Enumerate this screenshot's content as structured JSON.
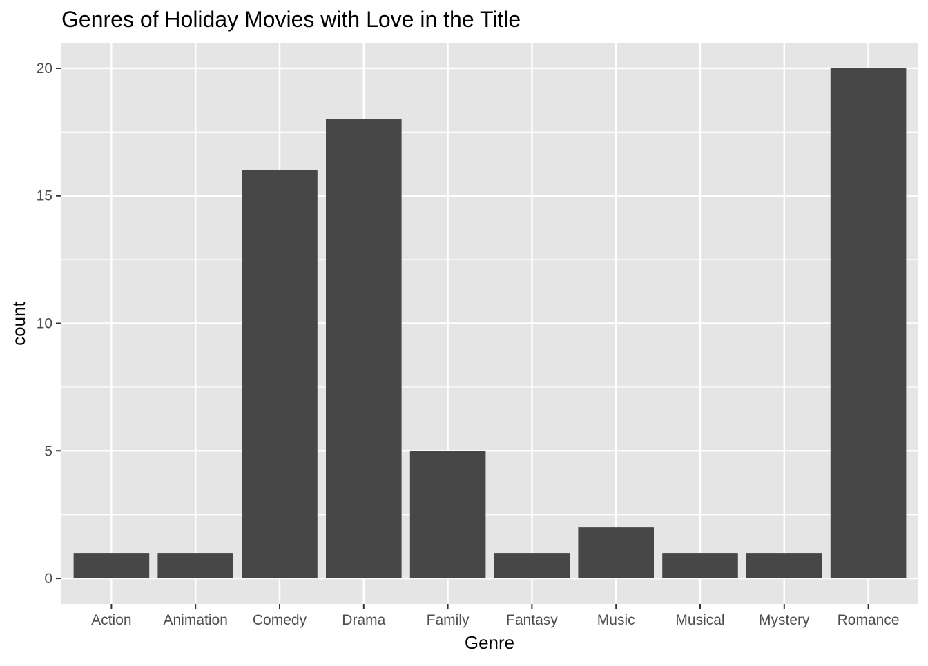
{
  "chart_data": {
    "type": "bar",
    "title": "Genres of Holiday Movies with Love in the Title",
    "xlabel": "Genre",
    "ylabel": "count",
    "categories": [
      "Action",
      "Animation",
      "Comedy",
      "Drama",
      "Family",
      "Fantasy",
      "Music",
      "Musical",
      "Mystery",
      "Romance"
    ],
    "values": [
      1,
      1,
      16,
      18,
      5,
      1,
      2,
      1,
      1,
      20
    ],
    "ylim": [
      -1,
      21
    ],
    "yticks": [
      0,
      5,
      10,
      15,
      20
    ],
    "grid": true,
    "legend": "none",
    "colors": {
      "panel_background": "#e5e5e5",
      "grid_major": "#ffffff",
      "bar_fill": "#474747",
      "tick_text": "#4d4d4d",
      "text": "#000000"
    }
  }
}
